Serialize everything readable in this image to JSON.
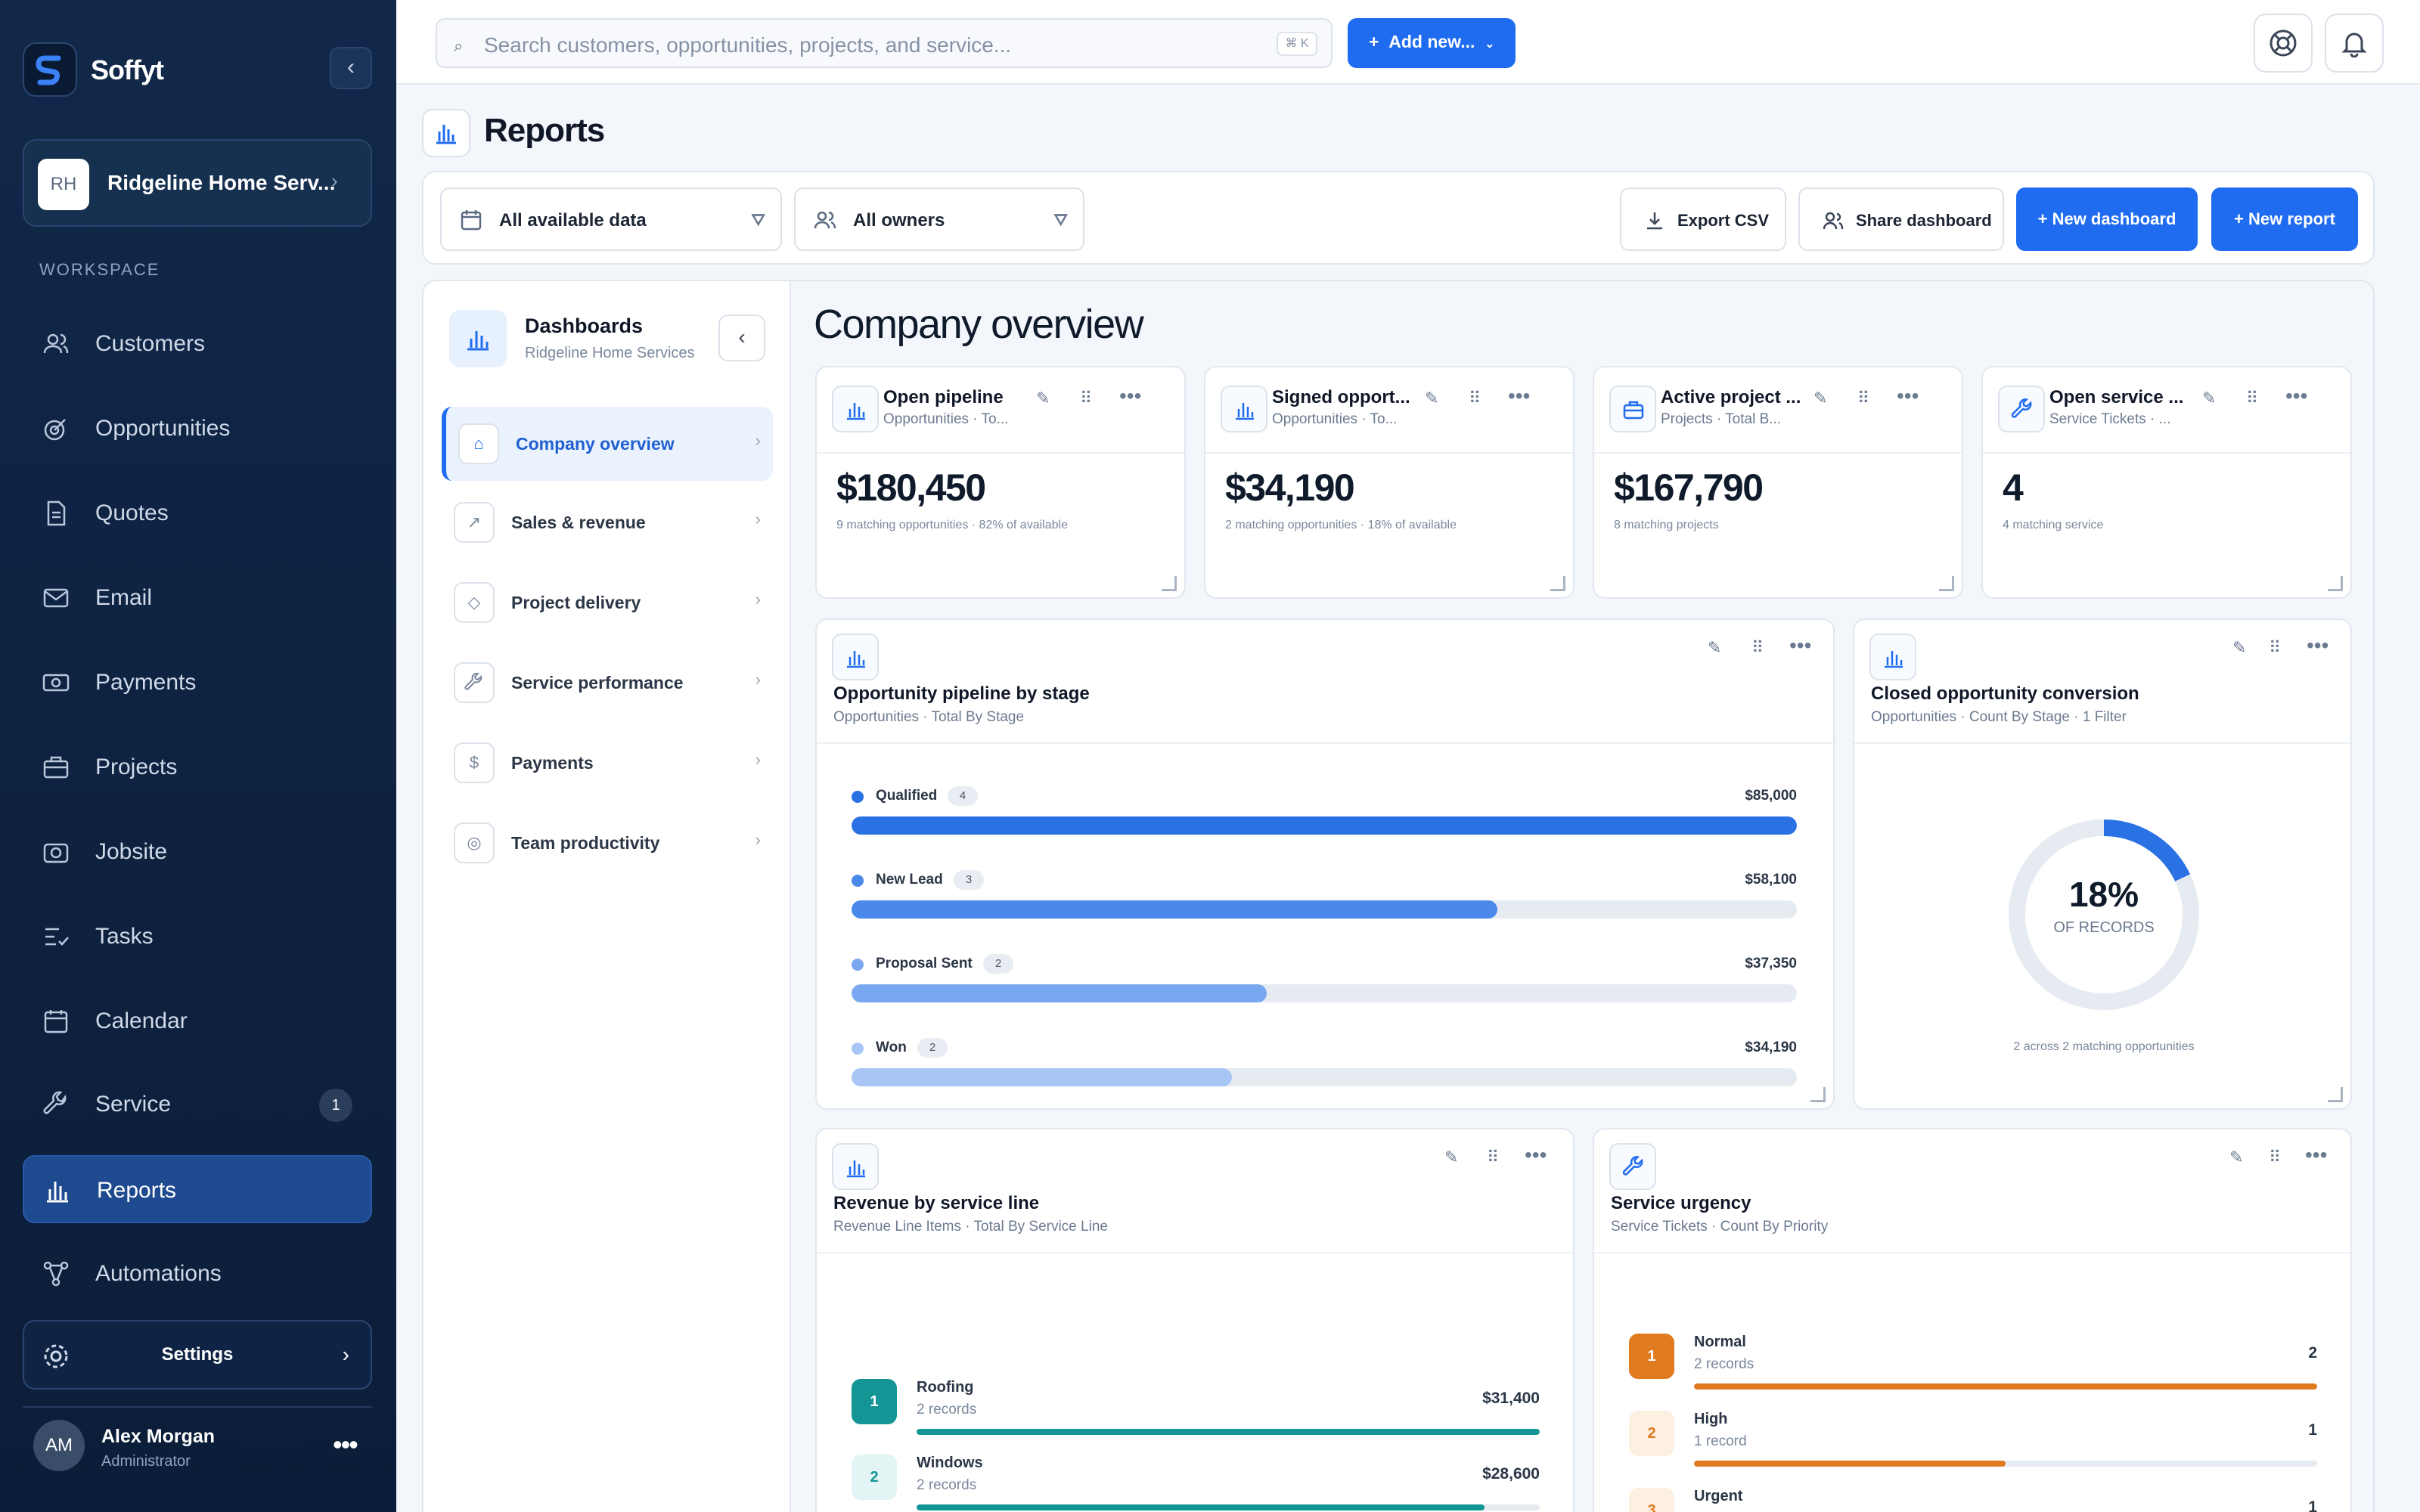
{
  "app": {
    "brand": "Soffyt"
  },
  "workspace": {
    "initials": "RH",
    "name": "Ridgeline Home Serv...",
    "section_label": "WORKSPACE"
  },
  "nav": [
    {
      "label": "Customers",
      "icon": "users-icon"
    },
    {
      "label": "Opportunities",
      "icon": "target-icon"
    },
    {
      "label": "Quotes",
      "icon": "document-icon"
    },
    {
      "label": "Email",
      "icon": "mail-icon"
    },
    {
      "label": "Payments",
      "icon": "cash-icon"
    },
    {
      "label": "Projects",
      "icon": "briefcase-icon"
    },
    {
      "label": "Jobsite",
      "icon": "camera-icon"
    },
    {
      "label": "Tasks",
      "icon": "checklist-icon"
    },
    {
      "label": "Calendar",
      "icon": "calendar-icon"
    },
    {
      "label": "Service",
      "icon": "wrench-icon",
      "badge": "1"
    },
    {
      "label": "Reports",
      "icon": "bar-chart-icon",
      "active": true
    },
    {
      "label": "Automations",
      "icon": "flow-icon"
    }
  ],
  "settings": {
    "label": "Settings"
  },
  "user": {
    "initials": "AM",
    "name": "Alex Morgan",
    "role": "Administrator"
  },
  "topbar": {
    "search_placeholder": "Search customers, opportunities, projects, and service...",
    "shortcut": "⌘ K",
    "add_new": "Add new..."
  },
  "page": {
    "title": "Reports"
  },
  "toolbar": {
    "data_filter": "All available data",
    "owner_filter": "All owners",
    "export": "Export CSV",
    "share": "Share dashboard",
    "new_dashboard": "New dashboard",
    "new_report": "New report"
  },
  "dashboards": {
    "title": "Dashboards",
    "subtitle": "Ridgeline Home Services",
    "items": [
      {
        "label": "Company overview",
        "icon": "⌂",
        "active": true
      },
      {
        "label": "Sales & revenue",
        "icon": "↗"
      },
      {
        "label": "Project delivery",
        "icon": "◇"
      },
      {
        "label": "Service performance",
        "icon": "wrench"
      },
      {
        "label": "Payments",
        "icon": "$"
      },
      {
        "label": "Team productivity",
        "icon": "◎"
      }
    ]
  },
  "overview": {
    "title": "Company overview"
  },
  "kpis": [
    {
      "title": "Open pipeline",
      "sub": "Opportunities · To...",
      "value": "$180,450",
      "note": "9 matching opportunities · 82% of available"
    },
    {
      "title": "Signed opport...",
      "sub": "Opportunities · To...",
      "value": "$34,190",
      "note": "2 matching opportunities · 18% of available"
    },
    {
      "title": "Active project ...",
      "sub": "Projects · Total B...",
      "value": "$167,790",
      "note": "8 matching projects"
    },
    {
      "title": "Open service ...",
      "sub": "Service Tickets · ...",
      "value": "4",
      "note": "4 matching service"
    }
  ],
  "pipeline": {
    "title": "Opportunity pipeline by stage",
    "sub": "Opportunities · Total By Stage",
    "stages": [
      {
        "name": "Qualified",
        "count": "4",
        "amount": "$85,000",
        "value": 85000,
        "color": "#2a72e3"
      },
      {
        "name": "New Lead",
        "count": "3",
        "amount": "$58,100",
        "value": 58100,
        "color": "#4a88ea"
      },
      {
        "name": "Proposal Sent",
        "count": "2",
        "amount": "$37,350",
        "value": 37350,
        "color": "#7aa8f0"
      },
      {
        "name": "Won",
        "count": "2",
        "amount": "$34,190",
        "value": 34190,
        "color": "#a8c6f5"
      }
    ],
    "max": 85000
  },
  "conversion": {
    "title": "Closed opportunity conversion",
    "sub": "Opportunities · Count By Stage · 1 Filter",
    "percent_label": "18%",
    "percent": 0.18,
    "unit": "OF RECORDS",
    "note": "2 across 2 matching opportunities"
  },
  "revenue": {
    "title": "Revenue by service line",
    "sub": "Revenue Line Items · Total By Service Line",
    "items": [
      {
        "rank": "1",
        "name": "Roofing",
        "sub": "2 records",
        "amount": "$31,400",
        "value": 31400
      },
      {
        "rank": "2",
        "name": "Windows",
        "sub": "2 records",
        "amount": "$28,600",
        "value": 28600
      }
    ],
    "max": 31400
  },
  "urgency": {
    "title": "Service urgency",
    "sub": "Service Tickets · Count By Priority",
    "items": [
      {
        "rank": "1",
        "name": "Normal",
        "sub": "2 records",
        "count": "2",
        "value": 2
      },
      {
        "rank": "2",
        "name": "High",
        "sub": "1 record",
        "count": "1",
        "value": 1
      },
      {
        "rank": "3",
        "name": "Urgent",
        "sub": "",
        "count": "1",
        "value": 1
      }
    ],
    "max": 2
  },
  "colors": {
    "accent": "#1f6cf0",
    "sidebar": "#0f2444",
    "teal": "#149595",
    "orange": "#e07a1f"
  }
}
